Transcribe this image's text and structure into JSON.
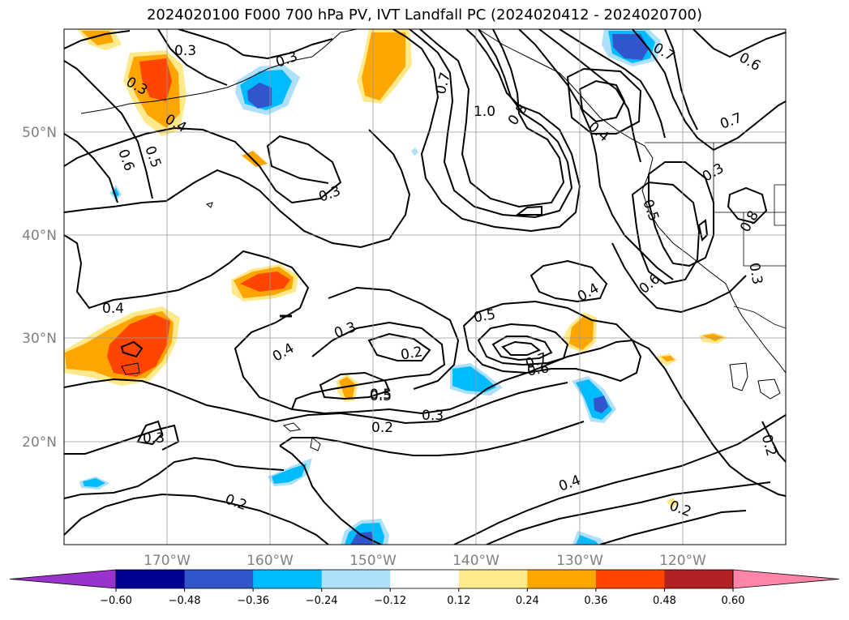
{
  "title": "2024020100 F000 700 hPa PV, IVT Landfall PC (2024020412 - 2024020700)",
  "map": {
    "lat_labels": [
      "50°N",
      "40°N",
      "30°N",
      "20°N"
    ],
    "lon_labels": [
      "170°W",
      "160°W",
      "150°W",
      "140°W",
      "130°W",
      "120°W"
    ],
    "lat_range": [
      10,
      59
    ],
    "lon_range": [
      -180,
      -110
    ],
    "grid": true
  },
  "contour_labels": [
    "0.3",
    "0.3",
    "0.4",
    "0.5",
    "0.6",
    "0.7",
    "1.0",
    "0.8",
    "0.7",
    "0.6",
    "0.4",
    "0.3",
    "0.3",
    "0.5",
    "0.8",
    "0.3",
    "0.6",
    "0.4",
    "0.3",
    "0.4",
    "0.3",
    "0.2",
    "0.5",
    "0.7",
    "0.6",
    "0.5",
    "0.3",
    "0.2",
    "0.3",
    "0.2",
    "0.4",
    "0.2",
    "0.2",
    "0.7",
    "0.5",
    "0.4"
  ],
  "colorbar": {
    "ticks": [
      "−0.60",
      "−0.48",
      "−0.36",
      "−0.24",
      "−0.12",
      "0.12",
      "0.24",
      "0.36",
      "0.48",
      "0.60"
    ],
    "colors": [
      "#9933CC",
      "#000090",
      "#3355CC",
      "#00BBFF",
      "#AEE0FA",
      "#FFFFFF",
      "#FFE98A",
      "#FFA500",
      "#FF4500",
      "#B22222",
      "#FF85A8"
    ]
  }
}
